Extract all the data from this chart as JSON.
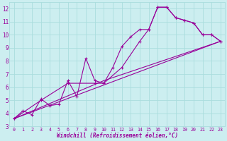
{
  "title": "",
  "xlabel": "Windchill (Refroidissement éolien,°C)",
  "bg_color": "#cceef0",
  "line_color": "#990099",
  "grid_color": "#aadddd",
  "xlim": [
    -0.5,
    23.5
  ],
  "ylim": [
    3,
    12.5
  ],
  "xticks": [
    0,
    1,
    2,
    3,
    4,
    5,
    6,
    7,
    8,
    9,
    10,
    11,
    12,
    13,
    14,
    15,
    16,
    17,
    18,
    19,
    20,
    21,
    22,
    23
  ],
  "yticks": [
    3,
    4,
    5,
    6,
    7,
    8,
    9,
    10,
    11,
    12
  ],
  "series": [
    [
      0,
      3.6
    ],
    [
      1,
      4.2
    ],
    [
      2,
      3.9
    ],
    [
      3,
      5.1
    ],
    [
      4,
      4.6
    ],
    [
      5,
      4.7
    ],
    [
      6,
      6.5
    ],
    [
      7,
      5.3
    ],
    [
      8,
      8.2
    ],
    [
      9,
      6.5
    ],
    [
      10,
      6.3
    ],
    [
      11,
      7.5
    ],
    [
      12,
      9.1
    ],
    [
      13,
      9.85
    ],
    [
      14,
      10.4
    ],
    [
      15,
      10.4
    ],
    [
      16,
      12.1
    ],
    [
      17,
      12.1
    ],
    [
      18,
      11.3
    ],
    [
      19,
      11.1
    ],
    [
      20,
      10.9
    ],
    [
      21,
      10.0
    ],
    [
      22,
      10.0
    ],
    [
      23,
      9.5
    ]
  ],
  "line2": [
    [
      0,
      3.6
    ],
    [
      3,
      5.0
    ],
    [
      6,
      6.3
    ],
    [
      9,
      6.3
    ],
    [
      10,
      6.3
    ],
    [
      12,
      7.5
    ],
    [
      14,
      9.5
    ],
    [
      15,
      10.4
    ],
    [
      16,
      12.1
    ],
    [
      17,
      12.1
    ],
    [
      18,
      11.3
    ],
    [
      19,
      11.1
    ],
    [
      20,
      10.9
    ],
    [
      21,
      10.0
    ],
    [
      22,
      10.0
    ],
    [
      23,
      9.5
    ]
  ],
  "line3": [
    [
      0,
      3.6
    ],
    [
      23,
      9.5
    ]
  ],
  "line4": [
    [
      0,
      3.6
    ],
    [
      10,
      6.5
    ],
    [
      23,
      9.5
    ]
  ]
}
